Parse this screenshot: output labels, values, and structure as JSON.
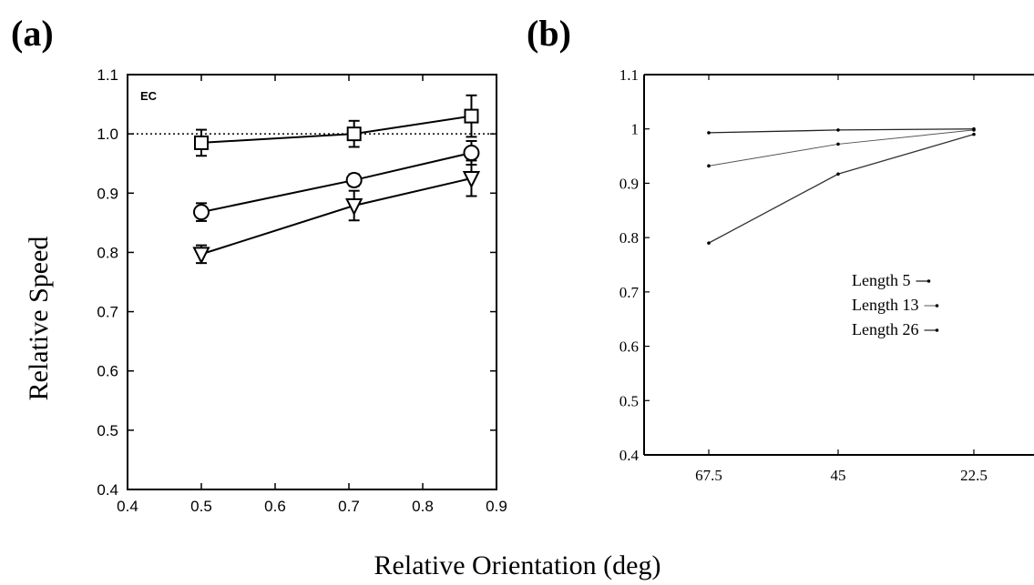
{
  "figure": {
    "panel_a_letter": "(a)",
    "panel_b_letter": "(b)",
    "shared_ylabel": "Relative Speed",
    "shared_xlabel": "Relative Orientation (deg)"
  },
  "chart_data": [
    {
      "type": "line",
      "panel": "a",
      "annotation": "EC",
      "x": [
        0.5,
        0.707,
        0.866
      ],
      "xlim": [
        0.4,
        0.9
      ],
      "ylim": [
        0.4,
        1.1
      ],
      "xticks": [
        "0.4",
        "0.5",
        "0.6",
        "0.7",
        "0.8",
        "0.9"
      ],
      "yticks": [
        "0.4",
        "0.5",
        "0.6",
        "0.7",
        "0.8",
        "0.9",
        "1.0",
        "1.1"
      ],
      "reference_line": 1.0,
      "grid": false,
      "series": [
        {
          "marker": "square",
          "values": [
            0.985,
            1.0,
            1.03
          ],
          "errors": [
            0.022,
            0.022,
            0.035
          ]
        },
        {
          "marker": "circle",
          "values": [
            0.868,
            0.922,
            0.968
          ],
          "errors": [
            0.015,
            0.01,
            0.02
          ]
        },
        {
          "marker": "triangle-down",
          "values": [
            0.797,
            0.879,
            0.925
          ],
          "errors": [
            0.015,
            0.025,
            0.03
          ]
        }
      ]
    },
    {
      "type": "line",
      "panel": "b",
      "categories": [
        "67.5",
        "45",
        "22.5"
      ],
      "ylim": [
        0.4,
        1.1
      ],
      "yticks": [
        "0.4",
        "0.5",
        "0.6",
        "0.7",
        "0.8",
        "0.9",
        "1",
        "1.1"
      ],
      "grid": false,
      "legend_position": "center-right",
      "series": [
        {
          "name": "Length 5",
          "values": [
            0.993,
            0.998,
            1.0
          ]
        },
        {
          "name": "Length 13",
          "values": [
            0.932,
            0.972,
            0.998
          ]
        },
        {
          "name": "Length 26",
          "values": [
            0.79,
            0.917,
            0.99
          ]
        }
      ]
    }
  ]
}
